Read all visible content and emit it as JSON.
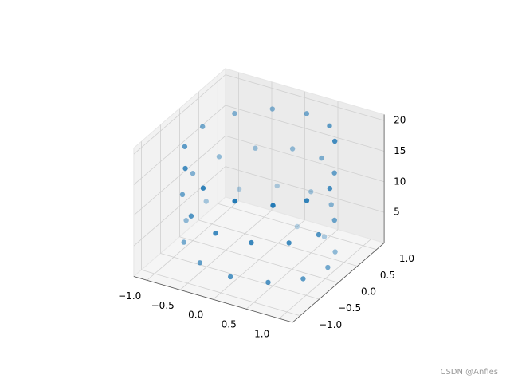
{
  "chart_data": {
    "type": "scatter3d",
    "x": [
      0,
      0.48,
      0.84,
      1.0,
      0.91,
      0.6,
      0.14,
      -0.35,
      -0.76,
      -0.98,
      -0.96,
      -0.71,
      -0.28,
      0.22,
      0.66,
      0.94,
      0.99,
      0.8,
      0.41,
      -0.08,
      -0.54,
      -0.88,
      -1.0,
      -0.88,
      -0.54,
      -0.07,
      0.42,
      0.8,
      0.99,
      0.93,
      0.65,
      0.2,
      -0.29,
      -0.71,
      -0.96,
      -0.98,
      -0.75,
      -0.34,
      0.15,
      0.61,
      0.91
    ],
    "y": [
      1,
      0.88,
      0.54,
      0.07,
      -0.42,
      -0.8,
      -0.99,
      -0.94,
      -0.65,
      -0.21,
      0.28,
      0.71,
      0.96,
      0.98,
      0.75,
      0.35,
      -0.15,
      -0.6,
      -0.91,
      -1.0,
      -0.84,
      -0.48,
      0.0,
      0.48,
      0.84,
      1.0,
      0.91,
      0.59,
      0.14,
      -0.36,
      -0.76,
      -0.98,
      -0.96,
      -0.7,
      -0.28,
      0.22,
      0.66,
      0.94,
      0.99,
      0.79,
      0.41
    ],
    "z": [
      0,
      0.5,
      1,
      1.5,
      2,
      2.5,
      3,
      3.5,
      4,
      4.5,
      5,
      5.5,
      6,
      6.5,
      7,
      7.5,
      8,
      8.5,
      9,
      9.5,
      10,
      10.5,
      11,
      11.5,
      12,
      12.5,
      13,
      13.5,
      14,
      14.5,
      15,
      15.5,
      16,
      16.5,
      17,
      17.5,
      18,
      18.5,
      19,
      19.5,
      20
    ],
    "color": "#1f77b4",
    "xlim": [
      -1.2,
      1.2
    ],
    "ylim": [
      -1.2,
      1.2
    ],
    "zlim": [
      0,
      21
    ],
    "xticks": [
      {
        "value": -1,
        "label": "−1.0"
      },
      {
        "value": -0.5,
        "label": "−0.5"
      },
      {
        "value": 0,
        "label": "0.0"
      },
      {
        "value": 0.5,
        "label": "0.5"
      },
      {
        "value": 1,
        "label": "1.0"
      }
    ],
    "yticks": [
      {
        "value": -1,
        "label": "−1.0"
      },
      {
        "value": -0.5,
        "label": "−0.5"
      },
      {
        "value": 0,
        "label": "0.0"
      },
      {
        "value": 0.5,
        "label": "0.5"
      },
      {
        "value": 1,
        "label": "1.0"
      }
    ],
    "zticks": [
      5,
      10,
      15,
      20
    ],
    "grid": true,
    "watermark": "CSDN @Anfies"
  }
}
